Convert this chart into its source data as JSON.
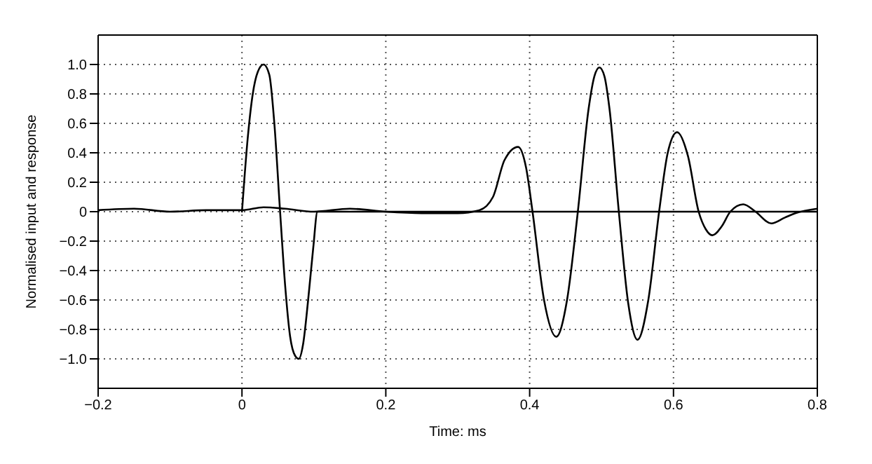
{
  "chart_data": {
    "type": "line",
    "xlabel": "Time: ms",
    "ylabel": "Normalised input and response",
    "xlim": [
      -0.2,
      0.8
    ],
    "xticks": [
      {
        "value": -0.2,
        "label": "−0.2"
      },
      0,
      0.2,
      0.4,
      0.6,
      0.8
    ],
    "ylim": [
      -1.2,
      1.2
    ],
    "yticks": [
      {
        "value": -1,
        "label": "−1.0"
      },
      {
        "value": -0.8,
        "label": "−0.8"
      },
      {
        "value": -0.6,
        "label": "−0.6"
      },
      {
        "value": -0.4,
        "label": "−0.4"
      },
      {
        "value": -0.2,
        "label": "−0.2"
      },
      0,
      0.2,
      0.4,
      0.6,
      0.8,
      {
        "value": 1,
        "label": "1.0"
      }
    ],
    "grid": true,
    "marker": "none",
    "line_style": "solid",
    "series": [
      {
        "color": "#000000",
        "x": [
          0,
          0.008,
          0.015,
          0.022,
          0.03,
          0.038,
          0.045,
          0.053,
          0.06,
          0.067,
          0.074,
          0.079,
          0.085,
          0.092,
          0.099,
          0.105,
          0.8
        ],
        "values": [
          0,
          0.5,
          0.8,
          0.95,
          1.0,
          0.93,
          0.6,
          0,
          -0.5,
          -0.85,
          -0.98,
          -1.0,
          -0.9,
          -0.6,
          -0.25,
          0,
          0
        ]
      },
      {
        "color": "#000000",
        "x": [
          -0.2,
          -0.15,
          -0.1,
          -0.05,
          0,
          0.03,
          0.06,
          0.1,
          0.15,
          0.2,
          0.25,
          0.3,
          0.33,
          0.349,
          0.365,
          0.384,
          0.395,
          0.404,
          0.42,
          0.437,
          0.452,
          0.467,
          0.482,
          0.49,
          0.497,
          0.504,
          0.511,
          0.524,
          0.537,
          0.55,
          0.565,
          0.58,
          0.592,
          0.605,
          0.62,
          0.635,
          0.645,
          0.654,
          0.667,
          0.679,
          0.697,
          0.714,
          0.736,
          0.755,
          0.77,
          0.8
        ],
        "values": [
          0.01,
          0.02,
          0,
          0.01,
          0.01,
          0.03,
          0.02,
          0,
          0.02,
          0,
          -0.01,
          -0.01,
          0.01,
          0.1,
          0.35,
          0.44,
          0.3,
          0,
          -0.6,
          -0.85,
          -0.6,
          0,
          0.7,
          0.92,
          0.98,
          0.92,
          0.7,
          0,
          -0.62,
          -0.87,
          -0.6,
          0,
          0.4,
          0.54,
          0.38,
          0,
          -0.12,
          -0.16,
          -0.1,
          0,
          0.05,
          0,
          -0.08,
          -0.04,
          -0.01,
          0.02
        ]
      }
    ]
  }
}
